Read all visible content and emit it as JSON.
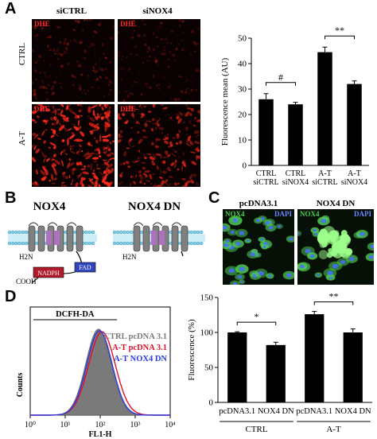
{
  "panels": {
    "A": {
      "label": "A",
      "col_headers": [
        "siCTRL",
        "siNOX4"
      ],
      "row_headers": [
        "CTRL",
        "A-T"
      ],
      "stain_label": "DHE",
      "stain_color": "#ff2a2a"
    },
    "B": {
      "label": "B",
      "titles": [
        "NOX4",
        "NOX4 DN"
      ],
      "domains": {
        "n_term": "H2N",
        "c_term": "COOH",
        "nadph": "NADPH",
        "fad": "FAD"
      },
      "membrane_color": "#7fd0e8",
      "helix_color": "#808080"
    },
    "C": {
      "label": "C",
      "col_headers": [
        "pcDNA3.1",
        "NOX4 DN"
      ],
      "stain_labels": [
        "NOX4",
        "DAPI"
      ],
      "nox4_color": "#4fd04f",
      "dapi_color": "#4a6cff"
    },
    "D": {
      "label": "D",
      "histogram": {
        "title": "DCFH-DA",
        "xlabel": "FL1-H",
        "ylabel": "Counts",
        "x_ticks": [
          "10⁰",
          "10¹",
          "10²",
          "10³",
          "10⁴"
        ],
        "legend": [
          "CTRL pcDNA 3.1",
          "A-T pcDNA 3.1",
          "A-T NOX4 DN"
        ],
        "legend_colors": [
          "#7a7a7a",
          "#e0102a",
          "#2a3ce0"
        ]
      }
    }
  },
  "chart_data": [
    {
      "type": "bar",
      "panel": "A",
      "categories": [
        "CTRL siCTRL",
        "CTRL siNOX4",
        "A-T siCTRL",
        "A-T siNOX4"
      ],
      "category_lines": [
        [
          "CTRL",
          "siCTRL"
        ],
        [
          "CTRL",
          "siNOX4"
        ],
        [
          "A-T",
          "siCTRL"
        ],
        [
          "A-T",
          "siNOX4"
        ]
      ],
      "values": [
        26,
        24,
        44.5,
        32
      ],
      "errors": [
        2.2,
        0.8,
        2,
        1.2
      ],
      "ylabel": "Fluorescence mean (AU)",
      "ylim": [
        0,
        50
      ],
      "yticks": [
        0,
        10,
        20,
        30,
        40,
        50
      ],
      "significance": [
        {
          "from": 0,
          "to": 1,
          "label": "#"
        },
        {
          "from": 2,
          "to": 3,
          "label": "**"
        }
      ],
      "bar_color": "#000000"
    },
    {
      "type": "bar",
      "panel": "D",
      "categories": [
        "CTRL pcDNA3.1",
        "CTRL NOX4 DN",
        "A-T pcDNA3.1",
        "A-T NOX4 DN"
      ],
      "tick_labels": [
        "pcDNA3.1",
        "NOX4 DN",
        "pcDNA3.1",
        "NOX4 DN"
      ],
      "groups": [
        {
          "label": "CTRL",
          "from": 0,
          "to": 1
        },
        {
          "label": "A-T",
          "from": 2,
          "to": 3
        }
      ],
      "values": [
        100,
        82,
        126,
        100
      ],
      "errors": [
        1,
        4,
        4,
        5
      ],
      "ylabel": "Fluorescence (%)",
      "ylim": [
        0,
        150
      ],
      "yticks": [
        0,
        50,
        100,
        150
      ],
      "significance": [
        {
          "from": 0,
          "to": 1,
          "label": "*"
        },
        {
          "from": 2,
          "to": 3,
          "label": "**"
        }
      ],
      "bar_color": "#000000"
    }
  ]
}
